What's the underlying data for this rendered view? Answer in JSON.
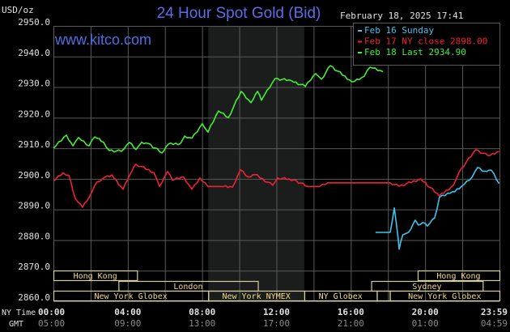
{
  "colors": {
    "title": "#5b6ee8",
    "site": "#4d6fe6",
    "grid": "#5a5a5a",
    "shade": "#1b1d1d",
    "axis_text": "#e0e0e0",
    "gmt_text": "#8a8a8a",
    "session_border": "#d4cc9c",
    "session_text": "#f2d98e",
    "feb16": "#3fc3ee",
    "feb17": "#ee2233",
    "feb18": "#44ee33"
  },
  "header": {
    "units": "USD/oz",
    "title": "24 Hour Spot Gold (Bid)",
    "timestamp": "February 18, 2025 17:41",
    "site": "www.kitco.com"
  },
  "chart_data": {
    "type": "line",
    "title": "24 Hour Spot Gold (Bid)",
    "ylabel": "USD/oz",
    "xlabel": "NY Time",
    "xlim": [
      0,
      24
    ],
    "ylim": [
      2860,
      2950
    ],
    "grid": true,
    "legend_position": "top-right",
    "y_ticks": [
      "2950.0",
      "2940.0",
      "2930.0",
      "2920.0",
      "2910.0",
      "2900.0",
      "2890.0",
      "2880.0",
      "2870.0",
      "2860.0"
    ],
    "ny_time_label": "NY Time",
    "gmt_label": "GMT",
    "x_ticks": [
      {
        "h": 0,
        "ny": "00:00",
        "gmt": "05:00"
      },
      {
        "h": 4,
        "ny": "04:00",
        "gmt": "09:00"
      },
      {
        "h": 8,
        "ny": "08:00",
        "gmt": "13:00"
      },
      {
        "h": 12,
        "ny": "12:00",
        "gmt": "17:00"
      },
      {
        "h": 16,
        "ny": "16:00",
        "gmt": "21:00"
      },
      {
        "h": 20,
        "ny": "20:00",
        "gmt": "01:00"
      },
      {
        "h": 24,
        "ny": "23:59",
        "gmt": "04:59"
      }
    ],
    "shaded_hours": [
      8.33,
      13.5
    ],
    "sessions": [
      {
        "name": "Hong Kong",
        "row": 0,
        "start": 0,
        "end": 4.5
      },
      {
        "name": "Hong Kong",
        "row": 0,
        "start": 19.6,
        "end": 24
      },
      {
        "name": "London",
        "row": 1,
        "start": 3.5,
        "end": 11
      },
      {
        "name": "Sydney",
        "row": 1,
        "start": 17.1,
        "end": 23.1
      },
      {
        "name": "New York Globex",
        "row": 2,
        "start": 0,
        "end": 8.33
      },
      {
        "name": "New York NYMEX",
        "row": 2,
        "start": 8.33,
        "end": 13.5
      },
      {
        "name": "NY Globex",
        "row": 2,
        "start": 13.5,
        "end": 17.4
      },
      {
        "name": "",
        "row": 2,
        "start": 17.4,
        "end": 18.1
      },
      {
        "name": "New York Globex",
        "row": 2,
        "start": 18.1,
        "end": 24
      }
    ],
    "series": [
      {
        "name": "Feb 16 Sunday",
        "legend": "Feb 16 Sunday",
        "color_key": "feb16",
        "points": [
          [
            17.33,
            2882.5
          ],
          [
            18.12,
            2882.5
          ],
          [
            18.34,
            2890.5
          ],
          [
            18.55,
            2880.4
          ],
          [
            18.6,
            2877
          ],
          [
            18.8,
            2881.7
          ],
          [
            19.1,
            2882.5
          ],
          [
            19.47,
            2886.5
          ],
          [
            19.64,
            2884.9
          ],
          [
            19.86,
            2885.7
          ],
          [
            20.12,
            2884.6
          ],
          [
            20.51,
            2887.2
          ],
          [
            20.77,
            2894
          ],
          [
            21.21,
            2895.3
          ],
          [
            21.6,
            2895.8
          ],
          [
            21.95,
            2897.5
          ],
          [
            22.39,
            2899.6
          ],
          [
            22.82,
            2903.7
          ],
          [
            23.2,
            2902.5
          ],
          [
            23.56,
            2902.8
          ],
          [
            23.98,
            2898.5
          ]
        ]
      },
      {
        "name": "Feb 17 NY close 2898.00",
        "legend": "Feb 17 NY close 2898.00",
        "color_key": "feb17",
        "points": [
          [
            0,
            2899.2
          ],
          [
            0.52,
            2902
          ],
          [
            0.83,
            2901.2
          ],
          [
            1.18,
            2893.6
          ],
          [
            1.57,
            2890.7
          ],
          [
            1.92,
            2894
          ],
          [
            2.35,
            2899
          ],
          [
            2.79,
            2900.6
          ],
          [
            3.14,
            2901.3
          ],
          [
            3.75,
            2896.6
          ],
          [
            4.09,
            2901.1
          ],
          [
            4.44,
            2904.8
          ],
          [
            5.4,
            2902.1
          ],
          [
            5.71,
            2897.5
          ],
          [
            6.14,
            2902.4
          ],
          [
            6.4,
            2899.6
          ],
          [
            7.01,
            2900.6
          ],
          [
            7.45,
            2896.6
          ],
          [
            7.88,
            2900.3
          ],
          [
            8.32,
            2897.5
          ],
          [
            9.02,
            2897.5
          ],
          [
            9.63,
            2897.3
          ],
          [
            10.06,
            2903
          ],
          [
            10.5,
            2900.6
          ],
          [
            10.85,
            2901.4
          ],
          [
            11.8,
            2897.9
          ],
          [
            12.07,
            2900.3
          ],
          [
            12.93,
            2899.7
          ],
          [
            13.68,
            2897.5
          ],
          [
            14.33,
            2897.5
          ],
          [
            14.76,
            2898.7
          ],
          [
            18.12,
            2898.7
          ],
          [
            18.6,
            2897.6
          ],
          [
            19.77,
            2900
          ],
          [
            20.77,
            2894.4
          ],
          [
            21.51,
            2897.8
          ],
          [
            21.95,
            2903.4
          ],
          [
            22.73,
            2909.5
          ],
          [
            23.39,
            2907.6
          ],
          [
            23.98,
            2909
          ]
        ]
      },
      {
        "name": "Feb 18 Last 2934.90",
        "legend": "Feb 18 Last 2934.90",
        "color_key": "feb18",
        "points": [
          [
            0,
            2910
          ],
          [
            0.7,
            2914.3
          ],
          [
            1.05,
            2910.8
          ],
          [
            1.35,
            2913.5
          ],
          [
            1.92,
            2910.8
          ],
          [
            2.22,
            2913.7
          ],
          [
            2.7,
            2912
          ],
          [
            3.0,
            2909.3
          ],
          [
            3.66,
            2909
          ],
          [
            4.09,
            2911.9
          ],
          [
            4.44,
            2909.6
          ],
          [
            4.75,
            2912
          ],
          [
            5.1,
            2911.6
          ],
          [
            5.84,
            2908.5
          ],
          [
            6.18,
            2911.3
          ],
          [
            6.84,
            2911.6
          ],
          [
            7.06,
            2914
          ],
          [
            7.45,
            2913.3
          ],
          [
            8.01,
            2918
          ],
          [
            8.32,
            2915.3
          ],
          [
            8.88,
            2922.2
          ],
          [
            9.41,
            2920
          ],
          [
            10.1,
            2928.6
          ],
          [
            10.63,
            2924.9
          ],
          [
            10.98,
            2928.6
          ],
          [
            11.19,
            2925.7
          ],
          [
            11.5,
            2929
          ],
          [
            11.93,
            2932.8
          ],
          [
            12.8,
            2932.1
          ],
          [
            13.55,
            2930.2
          ],
          [
            14.11,
            2934.4
          ],
          [
            14.42,
            2932.6
          ],
          [
            14.9,
            2937
          ],
          [
            16.07,
            2931.7
          ],
          [
            16.72,
            2933.5
          ],
          [
            17.03,
            2936.5
          ],
          [
            17.73,
            2935
          ]
        ]
      }
    ]
  }
}
